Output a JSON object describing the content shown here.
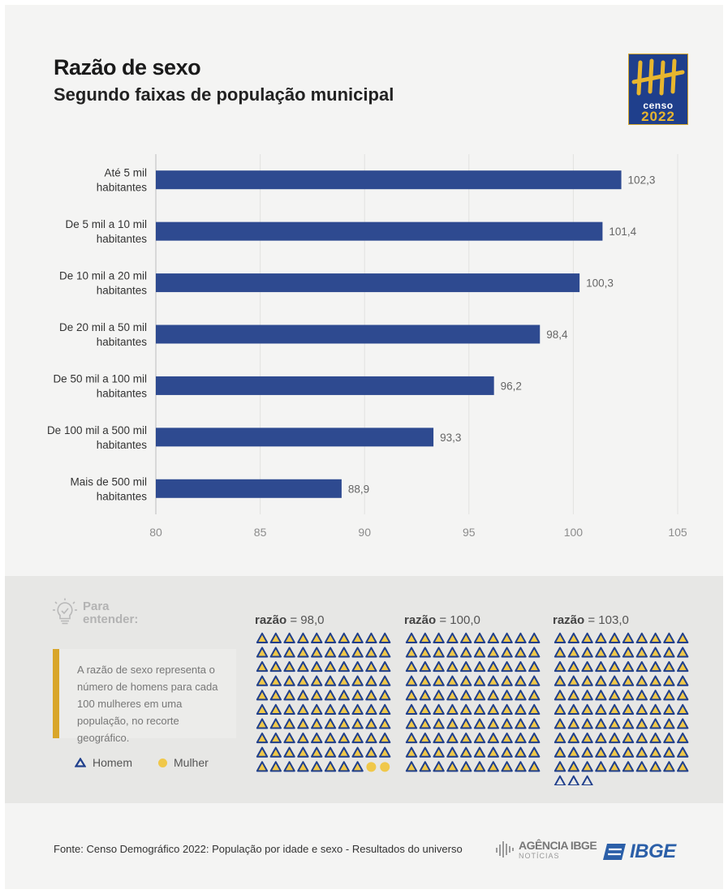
{
  "header": {
    "title": "Razão de sexo",
    "subtitle": "Segundo faixas de população municipal"
  },
  "logo": {
    "line1": "censo",
    "line2": "2022",
    "colors": {
      "background": "#1f3f8c",
      "accent": "#e8b62e"
    }
  },
  "chart_data": {
    "type": "bar",
    "orientation": "horizontal",
    "categories": [
      [
        "Até 5 mil",
        "habitantes"
      ],
      [
        "De 5 mil a 10 mil",
        "habitantes"
      ],
      [
        "De 10 mil a 20 mil",
        "habitantes"
      ],
      [
        "De 20 mil a 50 mil",
        "habitantes"
      ],
      [
        "De 50 mil a 100 mil",
        "habitantes"
      ],
      [
        "De 100 mil a 500 mil",
        "habitantes"
      ],
      [
        "Mais de 500 mil",
        "habitantes"
      ]
    ],
    "values": [
      102.3,
      101.4,
      100.3,
      98.4,
      96.2,
      93.3,
      88.9
    ],
    "value_labels": [
      "102,3",
      "101,4",
      "100,3",
      "98,4",
      "96,2",
      "93,3",
      "88,9"
    ],
    "xlim": [
      80,
      105
    ],
    "xticks": [
      80,
      85,
      90,
      95,
      100,
      105
    ],
    "grid": true,
    "bar_color": "#2e4a90"
  },
  "explainer": {
    "heading_line1": "Para",
    "heading_line2": "entender:",
    "text": "A razão de sexo representa o número de homens para cada 100 mulheres em uma população, no recorte geográfico.",
    "legend_homem": "Homem",
    "legend_mulher": "Mulher",
    "ratio_word": "razão",
    "examples": [
      {
        "label": "= 98,0",
        "homens": 98,
        "mulheres": 2,
        "extra_homens": 0
      },
      {
        "label": "= 100,0",
        "homens": 100,
        "mulheres": 0,
        "extra_homens": 0
      },
      {
        "label": "= 103,0",
        "homens": 100,
        "mulheres": 0,
        "extra_homens": 3
      }
    ],
    "colors": {
      "homem": "#1f3f8c",
      "homem_fill": "#f0c84a",
      "mulher": "#f0c84a",
      "highlight": "#d9a62a"
    }
  },
  "footer": {
    "source": "Fonte: Censo Demográfico 2022: População por idade e sexo - Resultados do universo",
    "agencia_name": "AGÊNCIA IBGE",
    "agencia_sub": "NOTÍCIAS",
    "ibge": "IBGE"
  }
}
